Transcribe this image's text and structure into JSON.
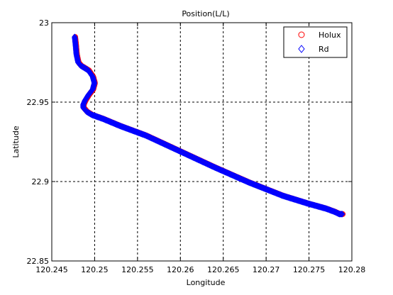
{
  "chart_data": {
    "type": "scatter",
    "title": "Position(L/L)",
    "xlabel": "Longitude",
    "ylabel": "Latitude",
    "xlim": [
      120.245,
      120.28
    ],
    "ylim": [
      22.85,
      23.0
    ],
    "xticks": [
      120.245,
      120.25,
      120.255,
      120.26,
      120.265,
      120.27,
      120.275,
      120.28
    ],
    "xtick_labels": [
      "120.245",
      "120.25",
      "120.255",
      "120.26",
      "120.265",
      "120.27",
      "120.275",
      "120.28"
    ],
    "yticks": [
      22.85,
      22.9,
      22.95,
      23.0
    ],
    "ytick_labels": [
      "22.85",
      "22.9",
      "22.95",
      "23"
    ],
    "grid": true,
    "legend_position": "top-right",
    "series": [
      {
        "name": "Holux",
        "marker": "circle",
        "color": "#ff0000",
        "x": [
          120.2477,
          120.2478,
          120.2479,
          120.2481,
          120.2484,
          120.2493,
          120.2498,
          120.25,
          120.2498,
          120.2493,
          120.2489,
          120.2487,
          120.2487,
          120.2491,
          120.2497,
          120.251,
          120.253,
          120.256,
          120.26,
          120.264,
          120.268,
          120.272,
          120.275,
          120.277,
          120.278,
          120.2786,
          120.2789
        ],
        "y": [
          22.991,
          22.986,
          22.98,
          22.975,
          22.973,
          22.97,
          22.966,
          22.962,
          22.958,
          22.9545,
          22.951,
          22.9485,
          22.9465,
          22.944,
          22.942,
          22.9395,
          22.935,
          22.929,
          22.919,
          22.909,
          22.8995,
          22.891,
          22.886,
          22.883,
          22.881,
          22.8795,
          22.8795
        ]
      },
      {
        "name": "Rd",
        "marker": "diamond",
        "color": "#0000ff",
        "x": [
          120.2477,
          120.2478,
          120.2479,
          120.2481,
          120.2484,
          120.2493,
          120.2498,
          120.25,
          120.2498,
          120.2493,
          120.2489,
          120.2487,
          120.2487,
          120.2491,
          120.2497,
          120.251,
          120.253,
          120.256,
          120.26,
          120.264,
          120.268,
          120.272,
          120.275,
          120.277,
          120.278,
          120.2786,
          120.2789
        ],
        "y": [
          22.991,
          22.986,
          22.98,
          22.975,
          22.973,
          22.97,
          22.966,
          22.962,
          22.958,
          22.9545,
          22.951,
          22.9485,
          22.9465,
          22.944,
          22.942,
          22.9395,
          22.935,
          22.929,
          22.919,
          22.909,
          22.8995,
          22.891,
          22.886,
          22.883,
          22.881,
          22.8795,
          22.8795
        ]
      }
    ]
  }
}
